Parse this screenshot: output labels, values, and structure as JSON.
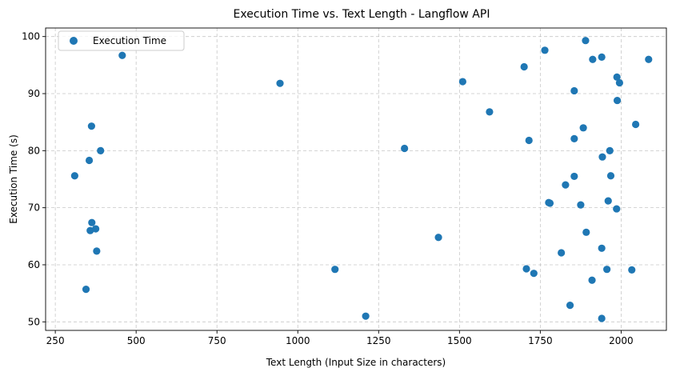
{
  "chart_data": {
    "type": "scatter",
    "title": "Execution Time vs. Text Length - Langflow API",
    "xlabel": "Text Length (Input Size in characters)",
    "ylabel": "Execution Time (s)",
    "xlim": [
      220,
      2140
    ],
    "ylim": [
      48.5,
      101.5
    ],
    "xticks": [
      250,
      500,
      750,
      1000,
      1250,
      1500,
      1750,
      2000
    ],
    "yticks": [
      50,
      60,
      70,
      80,
      90,
      100
    ],
    "grid": true,
    "legend_position": "top-left",
    "series": [
      {
        "name": "Execution Time",
        "color": "#1f77b4",
        "points": [
          [
            310,
            75.6
          ],
          [
            345,
            55.7
          ],
          [
            355,
            78.3
          ],
          [
            358,
            66.0
          ],
          [
            362,
            84.3
          ],
          [
            363,
            67.4
          ],
          [
            375,
            66.3
          ],
          [
            378,
            62.4
          ],
          [
            390,
            80.0
          ],
          [
            457,
            96.7
          ],
          [
            945,
            91.8
          ],
          [
            1115,
            59.2
          ],
          [
            1210,
            51.0
          ],
          [
            1330,
            80.4
          ],
          [
            1435,
            64.8
          ],
          [
            1510,
            92.1
          ],
          [
            1593,
            86.8
          ],
          [
            1700,
            94.7
          ],
          [
            1707,
            59.3
          ],
          [
            1715,
            81.8
          ],
          [
            1730,
            58.5
          ],
          [
            1764,
            97.6
          ],
          [
            1776,
            70.9
          ],
          [
            1780,
            70.8
          ],
          [
            1815,
            62.1
          ],
          [
            1828,
            74.0
          ],
          [
            1842,
            52.9
          ],
          [
            1855,
            75.5
          ],
          [
            1855,
            82.1
          ],
          [
            1855,
            90.5
          ],
          [
            1875,
            70.5
          ],
          [
            1883,
            84.0
          ],
          [
            1890,
            99.3
          ],
          [
            1892,
            65.7
          ],
          [
            1910,
            57.3
          ],
          [
            1912,
            96.0
          ],
          [
            1940,
            62.9
          ],
          [
            1940,
            50.6
          ],
          [
            1940,
            96.4
          ],
          [
            1942,
            78.9
          ],
          [
            1956,
            59.2
          ],
          [
            1960,
            71.2
          ],
          [
            1965,
            80.0
          ],
          [
            1968,
            75.6
          ],
          [
            1986,
            69.8
          ],
          [
            1987,
            92.9
          ],
          [
            1988,
            88.8
          ],
          [
            1995,
            91.9
          ],
          [
            2033,
            59.1
          ],
          [
            2045,
            84.6
          ],
          [
            2085,
            96.0
          ]
        ]
      }
    ]
  }
}
